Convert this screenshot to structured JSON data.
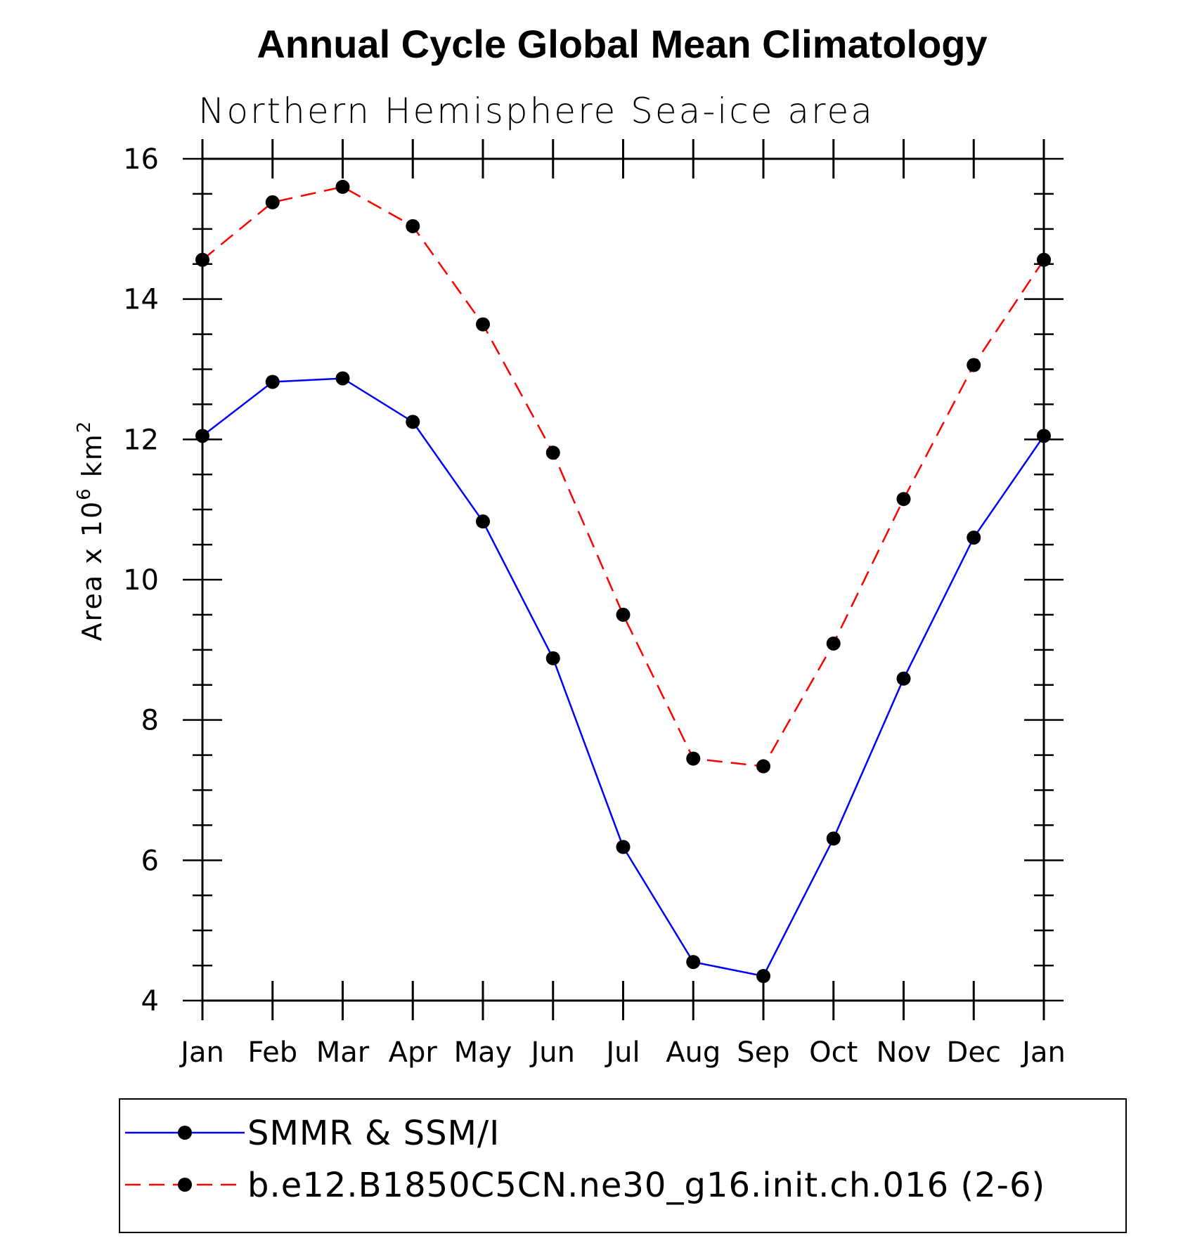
{
  "chart_data": {
    "type": "line",
    "title": "Annual Cycle Global Mean Climatology",
    "subtitle": "Northern Hemisphere Sea-ice area",
    "ylabel": {
      "prefix": "Area x 10",
      "exp": "6",
      "unit": " km",
      "unit_exp": "2"
    },
    "categories": [
      "Jan",
      "Feb",
      "Mar",
      "Apr",
      "May",
      "Jun",
      "Jul",
      "Aug",
      "Sep",
      "Oct",
      "Nov",
      "Dec",
      "Jan"
    ],
    "ylim": [
      4,
      16
    ],
    "yticks": [
      4,
      6,
      8,
      10,
      12,
      14,
      16
    ],
    "series": [
      {
        "name": "SMMR & SSM/I",
        "color": "#0000ff",
        "dash": "solid",
        "values": [
          12.05,
          12.82,
          12.87,
          12.25,
          10.83,
          8.88,
          6.19,
          4.55,
          4.35,
          6.31,
          8.59,
          10.6,
          12.05
        ]
      },
      {
        "name": "b.e12.B1850C5CN.ne30_g16.init.ch.016 (2-6)",
        "color": "#ff0000",
        "dash": "dashed",
        "values": [
          14.56,
          15.38,
          15.6,
          15.04,
          13.64,
          11.81,
          9.5,
          7.45,
          7.34,
          9.09,
          11.15,
          13.06,
          14.56
        ]
      }
    ],
    "legend": {
      "position": "bottom"
    }
  }
}
